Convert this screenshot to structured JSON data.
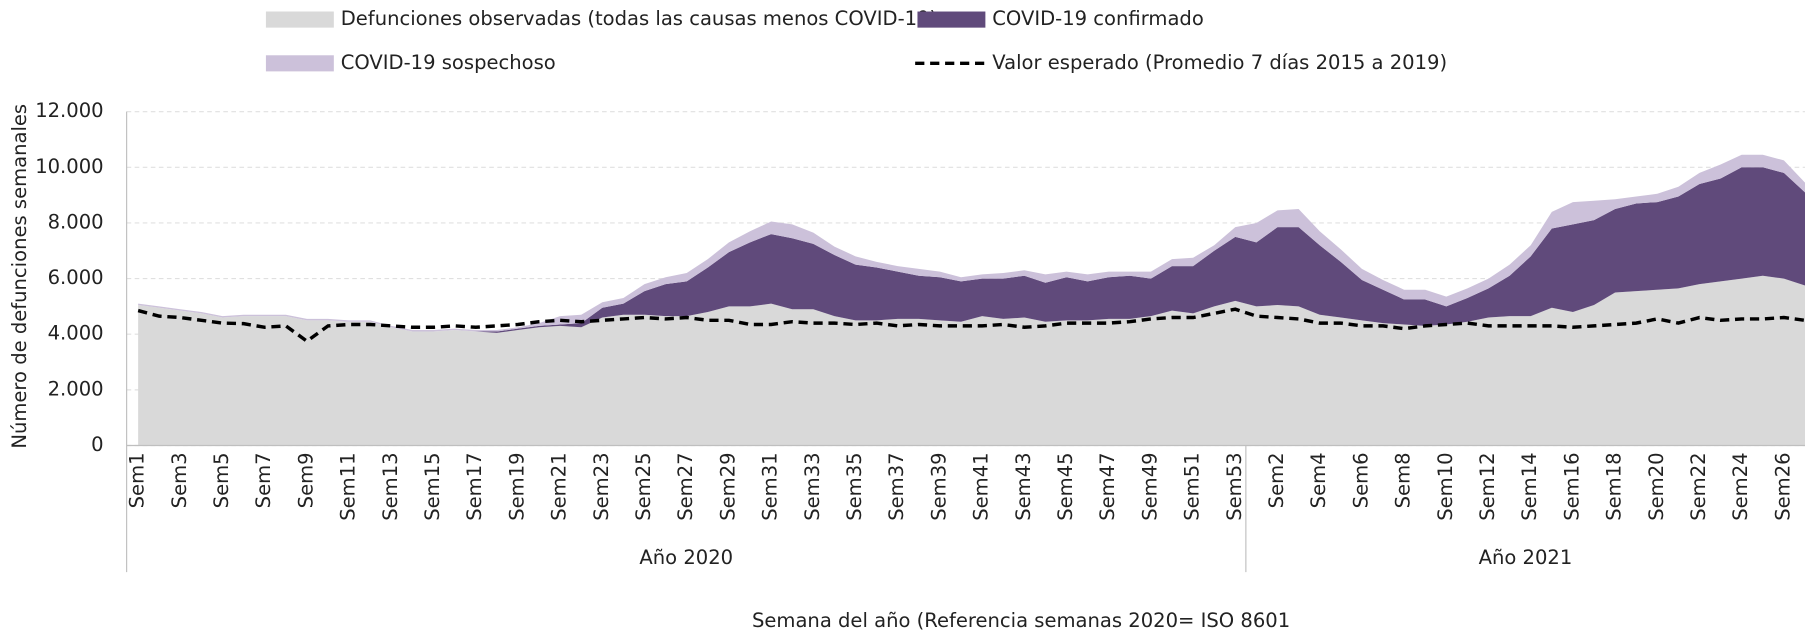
{
  "chart_data": {
    "type": "stacked_area",
    "y_label": "Número de defunciones semanales",
    "x_label": "Semana del año (Referencia semanas 2020= ISO 8601",
    "categories": [
      "Sem1",
      null,
      "Sem3",
      null,
      "Sem5",
      null,
      "Sem7",
      null,
      "Sem9",
      null,
      "Sem11",
      null,
      "Sem13",
      null,
      "Sem15",
      null,
      "Sem17",
      null,
      "Sem19",
      null,
      "Sem21",
      null,
      "Sem23",
      null,
      "Sem25",
      null,
      "Sem27",
      null,
      "Sem29",
      null,
      "Sem31",
      null,
      "Sem33",
      null,
      "Sem35",
      null,
      "Sem37",
      null,
      "Sem39",
      null,
      "Sem41",
      null,
      "Sem43",
      null,
      "Sem45",
      null,
      "Sem47",
      null,
      "Sem49",
      null,
      "Sem51",
      null,
      "Sem53",
      null,
      "Sem2",
      null,
      "Sem4",
      null,
      "Sem6",
      null,
      "Sem8",
      null,
      "Sem10",
      null,
      "Sem12",
      null,
      "Sem14",
      null,
      "Sem16",
      null,
      "Sem18",
      null,
      "Sem20",
      null,
      "Sem22",
      null,
      "Sem24",
      null,
      "Sem26",
      null
    ],
    "groups": [
      {
        "label": "Año 2020",
        "count": 53
      },
      {
        "label": "Año 2021",
        "count": 27
      }
    ],
    "series": [
      {
        "name": "Defunciones observadas (todas las causas menos COVID-19)",
        "kind": "area",
        "color": "#d9d9d9",
        "values": [
          5050,
          4950,
          4850,
          4750,
          4600,
          4650,
          4650,
          4650,
          4500,
          4500,
          4450,
          4450,
          4250,
          4100,
          4100,
          4150,
          4100,
          4050,
          4150,
          4250,
          4300,
          4250,
          4600,
          4700,
          4700,
          4650,
          4650,
          4800,
          5000,
          5000,
          5100,
          4900,
          4900,
          4650,
          4500,
          4500,
          4550,
          4550,
          4500,
          4450,
          4650,
          4550,
          4600,
          4450,
          4500,
          4500,
          4550,
          4550,
          4650,
          4850,
          4750,
          5000,
          5200,
          5000,
          5050,
          5000,
          4700,
          4600,
          4500,
          4400,
          4350,
          4300,
          4350,
          4450,
          4600,
          4650,
          4650,
          4950,
          4800,
          5050,
          5500,
          5550,
          5600,
          5650,
          5800,
          5900,
          6000,
          6100,
          6000,
          5750
        ]
      },
      {
        "name": "COVID-19 confirmado",
        "kind": "area",
        "color": "#604a7b",
        "values": [
          0,
          0,
          0,
          0,
          0,
          0,
          0,
          0,
          0,
          0,
          0,
          0,
          0,
          0,
          0,
          0,
          0,
          50,
          50,
          50,
          50,
          150,
          350,
          400,
          850,
          1150,
          1250,
          1600,
          1950,
          2300,
          2500,
          2550,
          2350,
          2200,
          2000,
          1900,
          1700,
          1550,
          1550,
          1450,
          1350,
          1450,
          1500,
          1400,
          1550,
          1400,
          1500,
          1550,
          1350,
          1600,
          1700,
          2000,
          2300,
          2300,
          2800,
          2850,
          2500,
          2000,
          1450,
          1200,
          900,
          950,
          650,
          850,
          1050,
          1450,
          2150,
          2850,
          3150,
          3050,
          3000,
          3150,
          3150,
          3300,
          3600,
          3700,
          4000,
          3900,
          3800,
          3350
        ]
      },
      {
        "name": "COVID-19 sospechoso",
        "kind": "area",
        "color": "#ccc1da",
        "values": [
          50,
          50,
          50,
          50,
          50,
          50,
          50,
          50,
          50,
          50,
          50,
          50,
          50,
          50,
          50,
          50,
          50,
          50,
          50,
          100,
          300,
          300,
          200,
          200,
          250,
          250,
          300,
          300,
          350,
          400,
          450,
          500,
          400,
          300,
          300,
          200,
          200,
          250,
          200,
          150,
          150,
          200,
          200,
          300,
          200,
          250,
          200,
          150,
          250,
          250,
          300,
          200,
          350,
          700,
          600,
          650,
          500,
          450,
          400,
          350,
          350,
          350,
          350,
          350,
          350,
          400,
          400,
          600,
          800,
          700,
          350,
          250,
          300,
          350,
          400,
          500,
          450,
          450,
          450,
          350
        ]
      },
      {
        "name": "Valor esperado (Promedio 7 días 2015 a 2019)",
        "kind": "line",
        "style": "dashed",
        "color": "#000000",
        "values": [
          4850,
          4650,
          4600,
          4500,
          4400,
          4380,
          4250,
          4300,
          3750,
          4300,
          4350,
          4350,
          4300,
          4250,
          4250,
          4300,
          4250,
          4300,
          4350,
          4450,
          4500,
          4450,
          4500,
          4550,
          4600,
          4550,
          4600,
          4500,
          4500,
          4350,
          4350,
          4450,
          4400,
          4400,
          4350,
          4400,
          4300,
          4350,
          4300,
          4300,
          4300,
          4350,
          4250,
          4300,
          4400,
          4400,
          4400,
          4450,
          4550,
          4600,
          4600,
          4750,
          4900,
          4650,
          4600,
          4550,
          4400,
          4400,
          4300,
          4300,
          4200,
          4300,
          4350,
          4400,
          4300,
          4300,
          4300,
          4300,
          4250,
          4300,
          4350,
          4400,
          4550,
          4400,
          4600,
          4500,
          4550,
          4550,
          4600,
          4500
        ]
      }
    ],
    "ylim": [
      0,
      12000
    ],
    "yticks": [
      0,
      {
        "value": 2000,
        "label": "2.000"
      },
      {
        "value": 4000,
        "label": "4.000"
      },
      {
        "value": 6000,
        "label": "6.000"
      },
      {
        "value": 8000,
        "label": "8.000"
      },
      {
        "value": 10000,
        "label": "10.000"
      },
      {
        "value": 12000,
        "label": "12.000"
      }
    ],
    "grid": true,
    "legend": "top"
  }
}
